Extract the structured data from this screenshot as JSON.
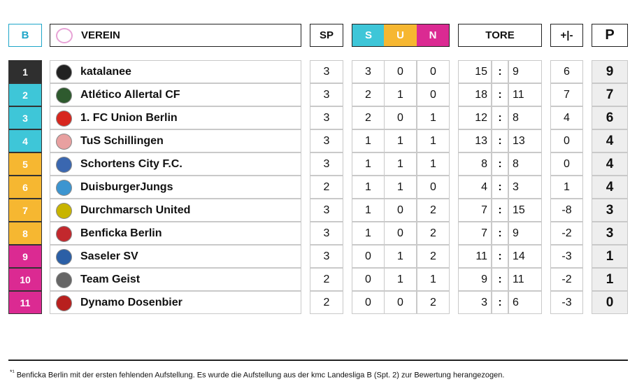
{
  "header": {
    "badge": "B",
    "club": "VEREIN",
    "played": "SP",
    "won": "S",
    "drawn": "U",
    "lost": "N",
    "goals": "TORE",
    "diff": "+|-",
    "points": "P"
  },
  "separator": ":",
  "rows": [
    {
      "rank": 1,
      "team": "katalanee",
      "played": 3,
      "won": 3,
      "drawn": 0,
      "lost": 0,
      "goals_for": 15,
      "goals_against": 9,
      "diff": 6,
      "points": 9
    },
    {
      "rank": 2,
      "team": "Atlético Allertal CF",
      "played": 3,
      "won": 2,
      "drawn": 1,
      "lost": 0,
      "goals_for": 18,
      "goals_against": 11,
      "diff": 7,
      "points": 7
    },
    {
      "rank": 3,
      "team": "1. FC Union Berlin",
      "played": 3,
      "won": 2,
      "drawn": 0,
      "lost": 1,
      "goals_for": 12,
      "goals_against": 8,
      "diff": 4,
      "points": 6
    },
    {
      "rank": 4,
      "team": "TuS Schillingen",
      "played": 3,
      "won": 1,
      "drawn": 1,
      "lost": 1,
      "goals_for": 13,
      "goals_against": 13,
      "diff": 0,
      "points": 4
    },
    {
      "rank": 5,
      "team": "Schortens City F.C.",
      "played": 3,
      "won": 1,
      "drawn": 1,
      "lost": 1,
      "goals_for": 8,
      "goals_against": 8,
      "diff": 0,
      "points": 4
    },
    {
      "rank": 6,
      "team": "DuisburgerJungs",
      "played": 2,
      "won": 1,
      "drawn": 1,
      "lost": 0,
      "goals_for": 4,
      "goals_against": 3,
      "diff": 1,
      "points": 4
    },
    {
      "rank": 7,
      "team": "Durchmarsch United",
      "played": 3,
      "won": 1,
      "drawn": 0,
      "lost": 2,
      "goals_for": 7,
      "goals_against": 15,
      "diff": -8,
      "points": 3
    },
    {
      "rank": 8,
      "team": "Benficka Berlin",
      "played": 3,
      "won": 1,
      "drawn": 0,
      "lost": 2,
      "goals_for": 7,
      "goals_against": 9,
      "diff": -2,
      "points": 3
    },
    {
      "rank": 9,
      "team": "Saseler SV",
      "played": 3,
      "won": 0,
      "drawn": 1,
      "lost": 2,
      "goals_for": 11,
      "goals_against": 14,
      "diff": -3,
      "points": 1
    },
    {
      "rank": 10,
      "team": "Team Geist",
      "played": 2,
      "won": 0,
      "drawn": 1,
      "lost": 1,
      "goals_for": 9,
      "goals_against": 11,
      "diff": -2,
      "points": 1
    },
    {
      "rank": 11,
      "team": "Dynamo Dosenbier",
      "played": 2,
      "won": 0,
      "drawn": 0,
      "lost": 2,
      "goals_for": 3,
      "goals_against": 6,
      "diff": -3,
      "points": 0
    }
  ],
  "footnote": {
    "marker": "*¹",
    "text": "Benficka Berlin mit der ersten fehlenden Aufstellung. Es wurde die Aufstellung aus der kmc Landesliga B (Spt. 2) zur Bewertung herangezogen."
  }
}
